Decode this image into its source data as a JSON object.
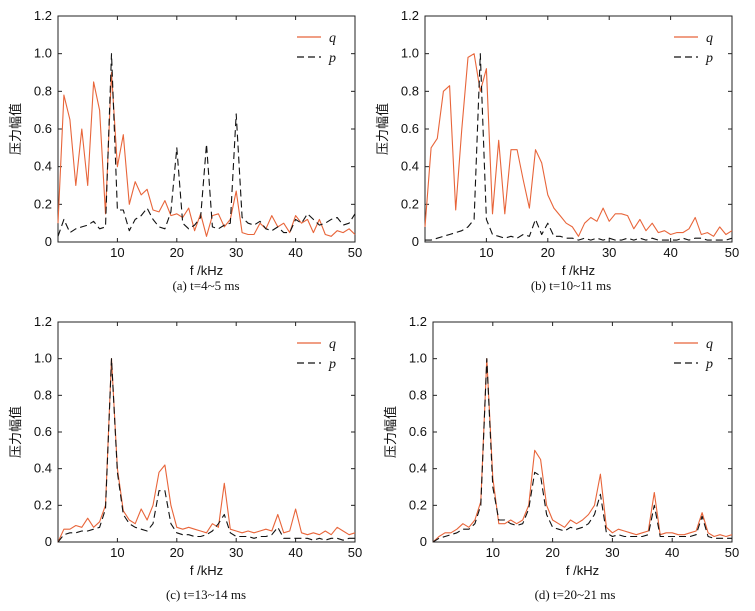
{
  "chart_data": [
    {
      "type": "line",
      "title": "",
      "caption": "(a)  t=4~5 ms",
      "xlabel": "f /kHz",
      "ylabel": "压力幅值",
      "xlim": [
        0,
        50
      ],
      "ylim": [
        0,
        1.2
      ],
      "xticks": [
        0,
        10,
        20,
        30,
        40,
        50
      ],
      "yticks": [
        0,
        0.2,
        0.4,
        0.6,
        0.8,
        1.0,
        1.2
      ],
      "series": [
        {
          "name": "q",
          "color": "#e8653a",
          "dash": "",
          "x": [
            0,
            1,
            2,
            3,
            4,
            5,
            6,
            7,
            8,
            9,
            10,
            11,
            12,
            13,
            14,
            15,
            16,
            17,
            18,
            19,
            20,
            21,
            22,
            23,
            24,
            25,
            26,
            27,
            28,
            29,
            30,
            31,
            32,
            33,
            34,
            35,
            36,
            37,
            38,
            39,
            40,
            41,
            42,
            43,
            44,
            45,
            46,
            47,
            48,
            49,
            50
          ],
          "values": [
            0.1,
            0.78,
            0.65,
            0.3,
            0.6,
            0.3,
            0.85,
            0.7,
            0.15,
            0.9,
            0.4,
            0.57,
            0.2,
            0.32,
            0.25,
            0.28,
            0.17,
            0.16,
            0.22,
            0.14,
            0.15,
            0.13,
            0.18,
            0.06,
            0.15,
            0.03,
            0.14,
            0.15,
            0.08,
            0.12,
            0.27,
            0.05,
            0.04,
            0.04,
            0.1,
            0.07,
            0.14,
            0.08,
            0.1,
            0.05,
            0.14,
            0.1,
            0.12,
            0.05,
            0.12,
            0.04,
            0.03,
            0.06,
            0.05,
            0.07,
            0.04
          ]
        },
        {
          "name": "p",
          "color": "#111111",
          "dash": "7,4",
          "x": [
            0,
            1,
            2,
            3,
            4,
            5,
            6,
            7,
            8,
            9,
            10,
            11,
            12,
            13,
            14,
            15,
            16,
            17,
            18,
            19,
            20,
            21,
            22,
            23,
            24,
            25,
            26,
            27,
            28,
            29,
            30,
            31,
            32,
            33,
            34,
            35,
            36,
            37,
            38,
            39,
            40,
            41,
            42,
            43,
            44,
            45,
            46,
            47,
            48,
            49,
            50
          ],
          "values": [
            0.03,
            0.12,
            0.05,
            0.07,
            0.08,
            0.09,
            0.11,
            0.07,
            0.08,
            1.0,
            0.17,
            0.17,
            0.06,
            0.12,
            0.14,
            0.18,
            0.12,
            0.08,
            0.07,
            0.16,
            0.5,
            0.1,
            0.07,
            0.09,
            0.13,
            0.52,
            0.08,
            0.07,
            0.09,
            0.1,
            0.68,
            0.13,
            0.1,
            0.09,
            0.11,
            0.07,
            0.06,
            0.08,
            0.05,
            0.05,
            0.12,
            0.1,
            0.15,
            0.12,
            0.09,
            0.1,
            0.12,
            0.13,
            0.09,
            0.1,
            0.15
          ]
        }
      ]
    },
    {
      "type": "line",
      "title": "",
      "caption": "(b)  t=10~11 ms",
      "xlabel": "f /kHz",
      "ylabel": "压力幅值",
      "xlim": [
        0,
        50
      ],
      "ylim": [
        0,
        1.2
      ],
      "xticks": [
        0,
        10,
        20,
        30,
        40,
        50
      ],
      "yticks": [
        0,
        0.2,
        0.4,
        0.6,
        0.8,
        1.0,
        1.2
      ],
      "series": [
        {
          "name": "q",
          "color": "#e8653a",
          "dash": "",
          "x": [
            0,
            1,
            2,
            3,
            4,
            5,
            6,
            7,
            8,
            9,
            10,
            11,
            12,
            13,
            14,
            15,
            16,
            17,
            18,
            19,
            20,
            21,
            22,
            23,
            24,
            25,
            26,
            27,
            28,
            29,
            30,
            31,
            32,
            33,
            34,
            35,
            36,
            37,
            38,
            39,
            40,
            41,
            42,
            43,
            44,
            45,
            46,
            47,
            48,
            49,
            50
          ],
          "values": [
            0.08,
            0.5,
            0.55,
            0.8,
            0.83,
            0.17,
            0.6,
            0.98,
            1.0,
            0.8,
            0.92,
            0.15,
            0.54,
            0.15,
            0.49,
            0.49,
            0.33,
            0.18,
            0.49,
            0.42,
            0.25,
            0.18,
            0.14,
            0.1,
            0.08,
            0.03,
            0.1,
            0.13,
            0.11,
            0.18,
            0.11,
            0.15,
            0.15,
            0.14,
            0.07,
            0.12,
            0.06,
            0.1,
            0.05,
            0.06,
            0.04,
            0.05,
            0.05,
            0.07,
            0.13,
            0.04,
            0.05,
            0.03,
            0.08,
            0.04,
            0.06
          ]
        },
        {
          "name": "p",
          "color": "#111111",
          "dash": "7,4",
          "x": [
            0,
            1,
            2,
            3,
            4,
            5,
            6,
            7,
            8,
            9,
            10,
            11,
            12,
            13,
            14,
            15,
            16,
            17,
            18,
            19,
            20,
            21,
            22,
            23,
            24,
            25,
            26,
            27,
            28,
            29,
            30,
            31,
            32,
            33,
            34,
            35,
            36,
            37,
            38,
            39,
            40,
            41,
            42,
            43,
            44,
            45,
            46,
            47,
            48,
            49,
            50
          ],
          "values": [
            0.01,
            0.01,
            0.02,
            0.03,
            0.04,
            0.05,
            0.06,
            0.08,
            0.12,
            1.0,
            0.12,
            0.04,
            0.03,
            0.02,
            0.03,
            0.02,
            0.04,
            0.03,
            0.12,
            0.04,
            0.1,
            0.03,
            0.03,
            0.02,
            0.02,
            0.01,
            0.02,
            0.01,
            0.02,
            0.01,
            0.02,
            0.01,
            0.01,
            0.02,
            0.01,
            0.02,
            0.01,
            0.02,
            0.01,
            0.01,
            0.01,
            0.01,
            0.02,
            0.01,
            0.02,
            0.02,
            0.01,
            0.01,
            0.01,
            0.01,
            0.02
          ]
        }
      ]
    },
    {
      "type": "line",
      "title": "",
      "caption": "(c)  t=13~14 ms",
      "xlabel": "f /kHz",
      "ylabel": "压力幅值",
      "xlim": [
        0,
        50
      ],
      "ylim": [
        0,
        1.2
      ],
      "xticks": [
        0,
        10,
        20,
        30,
        40,
        50
      ],
      "yticks": [
        0,
        0.2,
        0.4,
        0.6,
        0.8,
        1.0,
        1.2
      ],
      "series": [
        {
          "name": "q",
          "color": "#e8653a",
          "dash": "",
          "x": [
            0,
            1,
            2,
            3,
            4,
            5,
            6,
            7,
            8,
            9,
            10,
            11,
            12,
            13,
            14,
            15,
            16,
            17,
            18,
            19,
            20,
            21,
            22,
            23,
            24,
            25,
            26,
            27,
            28,
            29,
            30,
            31,
            32,
            33,
            34,
            35,
            36,
            37,
            38,
            39,
            40,
            41,
            42,
            43,
            44,
            45,
            46,
            47,
            48,
            49,
            50
          ],
          "values": [
            0.0,
            0.07,
            0.07,
            0.09,
            0.08,
            0.13,
            0.08,
            0.11,
            0.2,
            1.0,
            0.4,
            0.17,
            0.12,
            0.1,
            0.18,
            0.12,
            0.2,
            0.38,
            0.42,
            0.2,
            0.08,
            0.07,
            0.08,
            0.07,
            0.06,
            0.05,
            0.1,
            0.08,
            0.32,
            0.07,
            0.06,
            0.05,
            0.06,
            0.05,
            0.06,
            0.07,
            0.06,
            0.15,
            0.05,
            0.06,
            0.18,
            0.05,
            0.04,
            0.05,
            0.04,
            0.06,
            0.04,
            0.08,
            0.06,
            0.04,
            0.05
          ]
        },
        {
          "name": "p",
          "color": "#111111",
          "dash": "7,4",
          "x": [
            0,
            1,
            2,
            3,
            4,
            5,
            6,
            7,
            8,
            9,
            10,
            11,
            12,
            13,
            14,
            15,
            16,
            17,
            18,
            19,
            20,
            21,
            22,
            23,
            24,
            25,
            26,
            27,
            28,
            29,
            30,
            31,
            32,
            33,
            34,
            35,
            36,
            37,
            38,
            39,
            40,
            41,
            42,
            43,
            44,
            45,
            46,
            47,
            48,
            49,
            50
          ],
          "values": [
            0.0,
            0.04,
            0.05,
            0.05,
            0.06,
            0.06,
            0.07,
            0.08,
            0.18,
            1.0,
            0.38,
            0.15,
            0.1,
            0.08,
            0.07,
            0.06,
            0.1,
            0.28,
            0.28,
            0.1,
            0.05,
            0.04,
            0.04,
            0.03,
            0.03,
            0.04,
            0.06,
            0.1,
            0.15,
            0.05,
            0.03,
            0.03,
            0.03,
            0.02,
            0.03,
            0.03,
            0.04,
            0.08,
            0.02,
            0.02,
            0.02,
            0.02,
            0.02,
            0.01,
            0.02,
            0.01,
            0.02,
            0.02,
            0.01,
            0.02,
            0.02
          ]
        }
      ]
    },
    {
      "type": "line",
      "title": "",
      "caption": "(d)  t=20~21 ms",
      "xlabel": "f /kHz",
      "ylabel": "压力幅值",
      "xlim": [
        0,
        50
      ],
      "ylim": [
        0,
        1.2
      ],
      "xticks": [
        0,
        10,
        20,
        30,
        40,
        50
      ],
      "yticks": [
        0,
        0.2,
        0.4,
        0.6,
        0.8,
        1.0,
        1.2
      ],
      "series": [
        {
          "name": "q",
          "color": "#e8653a",
          "dash": "",
          "x": [
            0,
            1,
            2,
            3,
            4,
            5,
            6,
            7,
            8,
            9,
            10,
            11,
            12,
            13,
            14,
            15,
            16,
            17,
            18,
            19,
            20,
            21,
            22,
            23,
            24,
            25,
            26,
            27,
            28,
            29,
            30,
            31,
            32,
            33,
            34,
            35,
            36,
            37,
            38,
            39,
            40,
            41,
            42,
            43,
            44,
            45,
            46,
            47,
            48,
            49,
            50
          ],
          "values": [
            0.0,
            0.03,
            0.05,
            0.05,
            0.07,
            0.1,
            0.08,
            0.12,
            0.22,
            1.0,
            0.35,
            0.1,
            0.1,
            0.12,
            0.1,
            0.12,
            0.2,
            0.5,
            0.45,
            0.2,
            0.12,
            0.1,
            0.08,
            0.12,
            0.1,
            0.12,
            0.15,
            0.2,
            0.37,
            0.08,
            0.05,
            0.07,
            0.06,
            0.05,
            0.04,
            0.05,
            0.06,
            0.27,
            0.04,
            0.05,
            0.05,
            0.04,
            0.04,
            0.05,
            0.06,
            0.16,
            0.05,
            0.03,
            0.04,
            0.03,
            0.04
          ]
        },
        {
          "name": "p",
          "color": "#111111",
          "dash": "7,4",
          "x": [
            0,
            1,
            2,
            3,
            4,
            5,
            6,
            7,
            8,
            9,
            10,
            11,
            12,
            13,
            14,
            15,
            16,
            17,
            18,
            19,
            20,
            21,
            22,
            23,
            24,
            25,
            26,
            27,
            28,
            29,
            30,
            31,
            32,
            33,
            34,
            35,
            36,
            37,
            38,
            39,
            40,
            41,
            42,
            43,
            44,
            45,
            46,
            47,
            48,
            49,
            50
          ],
          "values": [
            0.0,
            0.02,
            0.03,
            0.04,
            0.05,
            0.07,
            0.07,
            0.1,
            0.2,
            1.0,
            0.3,
            0.12,
            0.12,
            0.1,
            0.09,
            0.1,
            0.18,
            0.38,
            0.36,
            0.15,
            0.08,
            0.07,
            0.06,
            0.08,
            0.07,
            0.08,
            0.1,
            0.15,
            0.26,
            0.05,
            0.03,
            0.04,
            0.03,
            0.03,
            0.03,
            0.03,
            0.04,
            0.2,
            0.03,
            0.03,
            0.03,
            0.03,
            0.03,
            0.03,
            0.04,
            0.14,
            0.03,
            0.02,
            0.02,
            0.02,
            0.02
          ]
        }
      ]
    }
  ]
}
